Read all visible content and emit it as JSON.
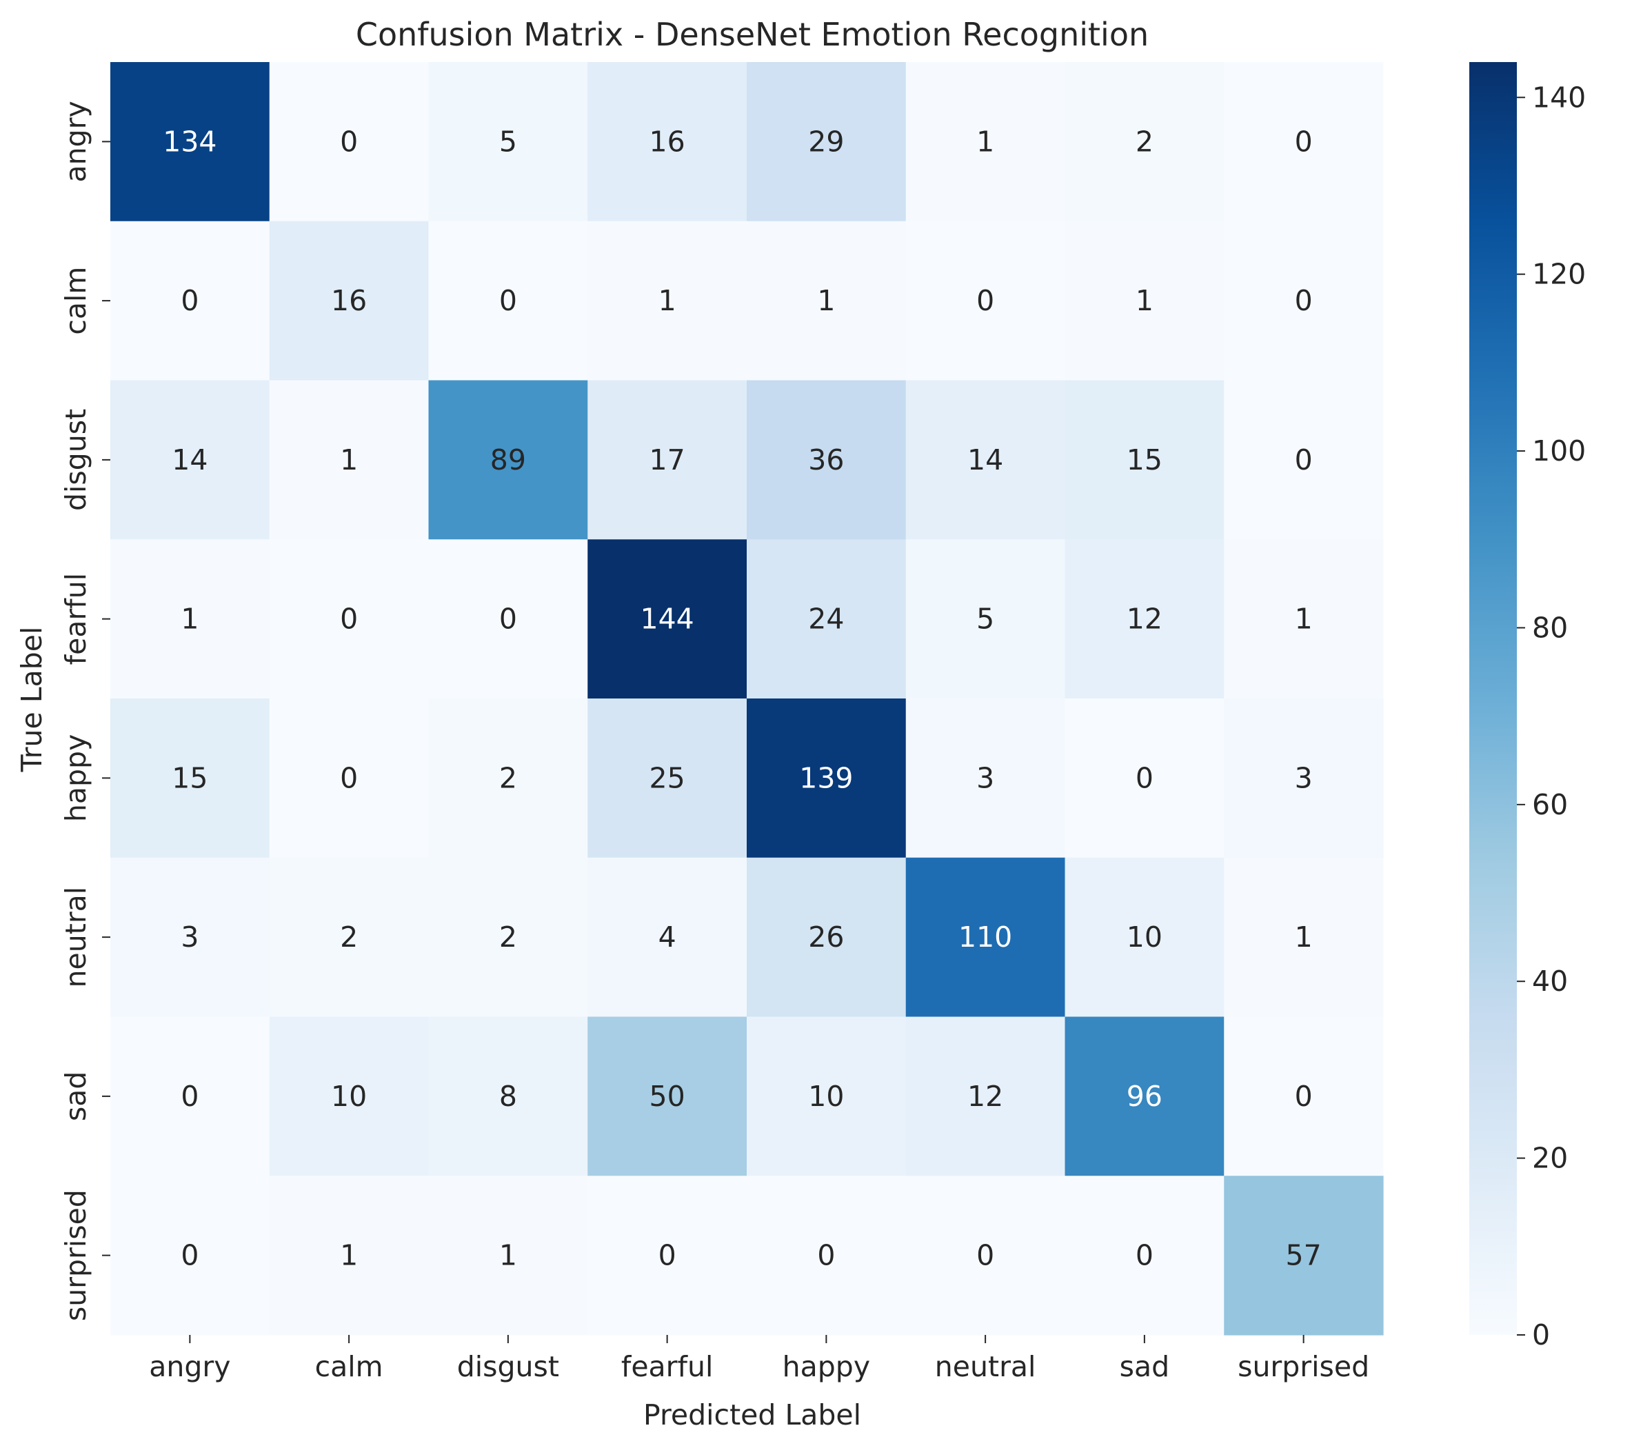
{
  "chart_data": {
    "type": "heatmap",
    "title": "Confusion Matrix - DenseNet Emotion Recognition",
    "xlabel": "Predicted Label",
    "ylabel": "True Label",
    "x_categories": [
      "angry",
      "calm",
      "disgust",
      "fearful",
      "happy",
      "neutral",
      "sad",
      "surprised"
    ],
    "y_categories": [
      "angry",
      "calm",
      "disgust",
      "fearful",
      "happy",
      "neutral",
      "sad",
      "surprised"
    ],
    "values": [
      [
        134,
        0,
        5,
        16,
        29,
        1,
        2,
        0
      ],
      [
        0,
        16,
        0,
        1,
        1,
        0,
        1,
        0
      ],
      [
        14,
        1,
        89,
        17,
        36,
        14,
        15,
        0
      ],
      [
        1,
        0,
        0,
        144,
        24,
        5,
        12,
        1
      ],
      [
        15,
        0,
        2,
        25,
        139,
        3,
        0,
        3
      ],
      [
        3,
        2,
        2,
        4,
        26,
        110,
        10,
        1
      ],
      [
        0,
        10,
        8,
        50,
        10,
        12,
        96,
        0
      ],
      [
        0,
        1,
        1,
        0,
        0,
        0,
        0,
        57
      ]
    ],
    "colormap": "Blues",
    "vmin": 0,
    "vmax": 144,
    "colorbar_ticks": [
      0,
      20,
      40,
      60,
      80,
      100,
      120,
      140
    ],
    "colors": {
      "low": "#f7fbff",
      "high": "#08306b",
      "text_dark": "#262626",
      "text_light": "#ffffff"
    }
  }
}
